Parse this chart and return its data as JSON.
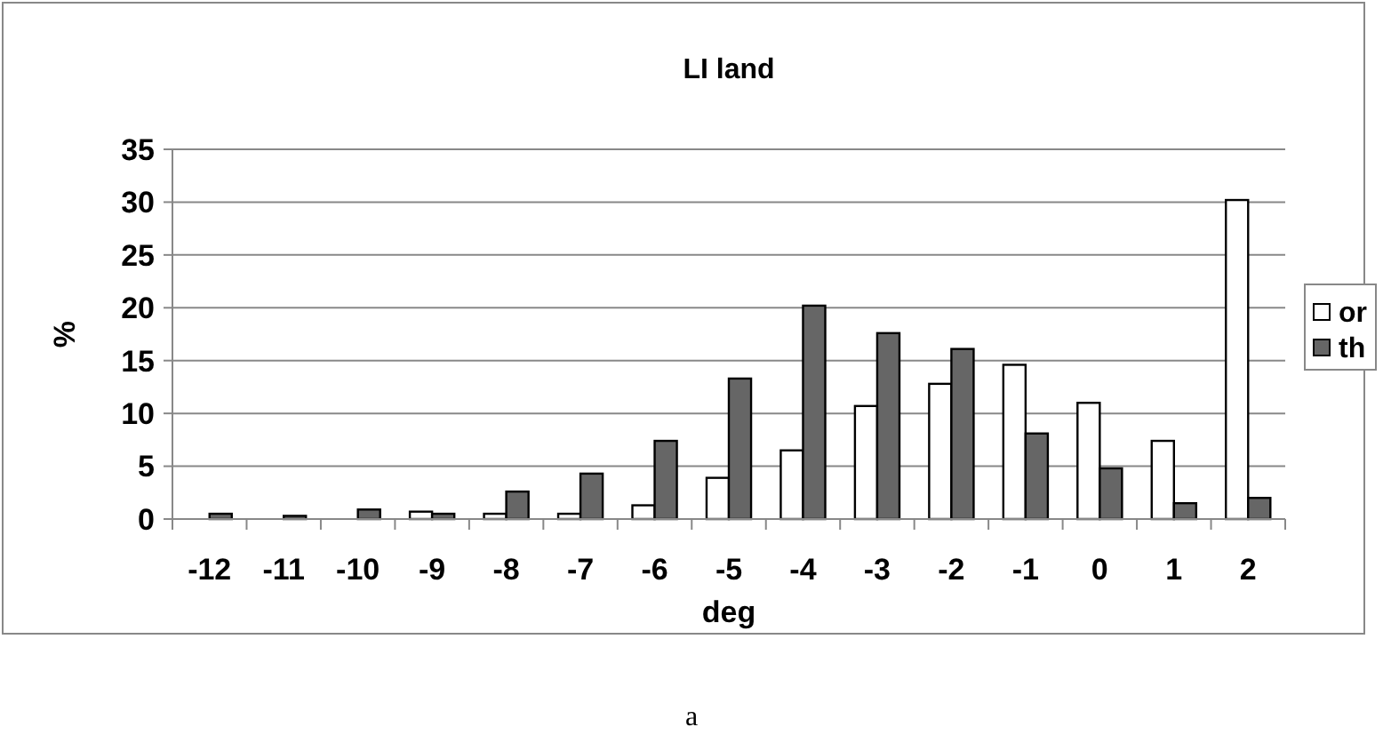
{
  "chart_data": {
    "type": "bar",
    "title": "LI land",
    "xlabel": "deg",
    "ylabel": "%",
    "categories": [
      "-12",
      "-11",
      "-10",
      "-9",
      "-8",
      "-7",
      "-6",
      "-5",
      "-4",
      "-3",
      "-2",
      "-1",
      "0",
      "1",
      "2"
    ],
    "series": [
      {
        "name": "or",
        "color": "#ffffff",
        "values": [
          0,
          0,
          0,
          0.7,
          0.5,
          0.5,
          1.3,
          3.9,
          6.5,
          10.7,
          12.8,
          14.6,
          11,
          7.4,
          30.2
        ]
      },
      {
        "name": "th",
        "color": "#666666",
        "values": [
          0.5,
          0.3,
          0.9,
          0.5,
          2.6,
          4.3,
          7.4,
          13.3,
          20.2,
          17.6,
          16.1,
          8.1,
          4.8,
          1.5,
          2
        ]
      }
    ],
    "ylim": [
      0,
      35
    ],
    "yticks": [
      0,
      5,
      10,
      15,
      20,
      25,
      30,
      35
    ],
    "grid": "y",
    "legend": "right",
    "annotations": [
      "a"
    ]
  }
}
